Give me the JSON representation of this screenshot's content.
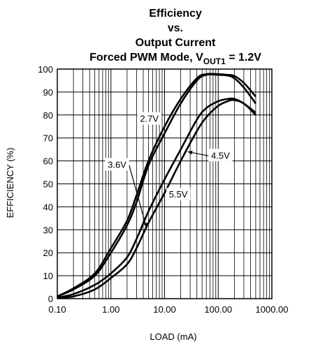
{
  "chart_data": {
    "type": "line",
    "title": [
      "Efficiency",
      "vs.",
      "Output Current"
    ],
    "title_line4": {
      "prefix": "Forced PWM Mode, V",
      "subscript": "OUT1",
      "suffix": " = 1.2V"
    },
    "xlabel": "LOAD (mA)",
    "ylabel": "EFFICIENCY (%)",
    "xscale": "log",
    "xlim": [
      0.1,
      1000
    ],
    "ylim": [
      0,
      100
    ],
    "x_tick_labels": [
      "0.10",
      "1.00",
      "10.00",
      "100.00",
      "1000.00"
    ],
    "x_ticks": [
      0.1,
      1,
      10,
      100,
      1000
    ],
    "y_ticks": [
      0,
      10,
      20,
      30,
      40,
      50,
      60,
      70,
      80,
      90,
      100
    ],
    "grid": true,
    "series": [
      {
        "name": "2.7V",
        "x": [
          0.1,
          0.2,
          0.5,
          1,
          2,
          3,
          5,
          10,
          20,
          40,
          60,
          100,
          150,
          200,
          300,
          500
        ],
        "y": [
          1,
          4,
          10,
          20,
          32,
          42,
          58,
          72,
          85,
          95,
          97.5,
          97.5,
          97.2,
          96,
          92,
          85
        ]
      },
      {
        "name": "3.6V",
        "x": [
          0.1,
          0.2,
          0.5,
          1,
          2,
          3,
          5,
          10,
          20,
          40,
          60,
          100,
          150,
          200,
          300,
          500
        ],
        "y": [
          1,
          4.5,
          11,
          22,
          34,
          45,
          60,
          75,
          87,
          96,
          97.8,
          97.8,
          97.5,
          97,
          94,
          88
        ]
      },
      {
        "name": "4.5V",
        "x": [
          0.1,
          0.2,
          0.5,
          1,
          2,
          3,
          5,
          10,
          20,
          40,
          60,
          100,
          150,
          200,
          300,
          500
        ],
        "y": [
          0.5,
          2,
          6,
          11,
          18,
          26,
          38,
          52,
          65,
          78,
          83,
          86,
          87,
          87,
          85,
          81
        ]
      },
      {
        "name": "5.5V",
        "x": [
          0.1,
          0.2,
          0.5,
          1,
          2,
          3,
          5,
          10,
          20,
          40,
          60,
          100,
          150,
          200,
          300,
          500
        ],
        "y": [
          0.3,
          1,
          4,
          9,
          15,
          22,
          33,
          46,
          60,
          73,
          79,
          84,
          86,
          86.5,
          85,
          80
        ]
      }
    ],
    "annotations": [
      {
        "text": "2.7V",
        "x": 5.2,
        "y": 77,
        "arrow_to": null
      },
      {
        "text": "3.6V",
        "x": 1.3,
        "y": 57,
        "arrow_to": [
          4.6,
          31
        ]
      },
      {
        "text": "4.5V",
        "x": 110,
        "y": 61,
        "arrow_to": [
          27,
          64
        ]
      },
      {
        "text": "5.5V",
        "x": 18,
        "y": 44,
        "arrow_to": null
      }
    ]
  }
}
